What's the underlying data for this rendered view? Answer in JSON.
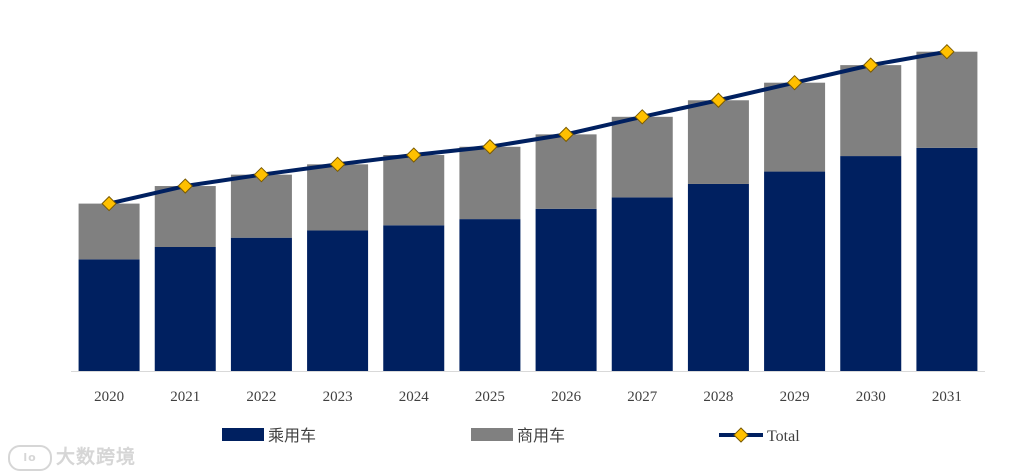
{
  "chart_data": {
    "type": "bar",
    "stacked": true,
    "categories": [
      "2020",
      "2021",
      "2022",
      "2023",
      "2024",
      "2025",
      "2026",
      "2027",
      "2028",
      "2029",
      "2030",
      "2031"
    ],
    "series": [
      {
        "name": "乘用车",
        "color": "#002060",
        "values": [
          108,
          120,
          129,
          136,
          141,
          147,
          157,
          168,
          181,
          193,
          208,
          216
        ]
      },
      {
        "name": "商用车",
        "color": "#808080",
        "values": [
          54,
          59,
          61,
          64,
          68,
          70,
          72,
          78,
          81,
          86,
          88,
          93
        ]
      },
      {
        "name": "Total",
        "type": "line",
        "color": "#002060",
        "marker_color": "#FFC000",
        "values": [
          162,
          179,
          190,
          200,
          209,
          217,
          229,
          246,
          262,
          279,
          296,
          309
        ]
      }
    ],
    "ylim": [
      0,
      330
    ],
    "xlabel": "",
    "ylabel": "",
    "title": "",
    "legend_position": "bottom"
  },
  "watermark": "大数跨境",
  "watermark_logo": "lo"
}
